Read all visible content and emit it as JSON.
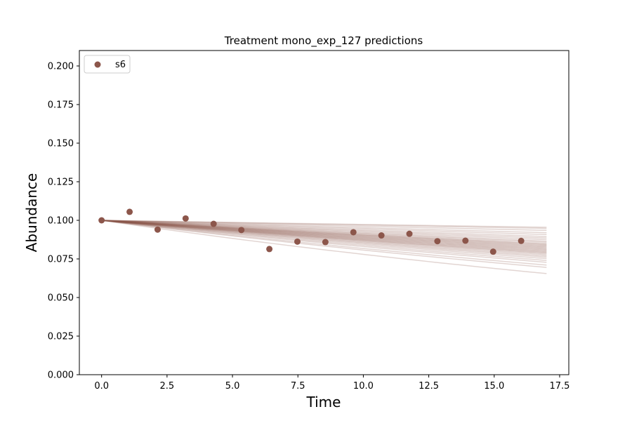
{
  "chart_data": {
    "type": "scatter",
    "title": "Treatment mono_exp_127 predictions",
    "xlabel": "Time",
    "ylabel": "Abundance",
    "xlim": [
      -0.85,
      17.85
    ],
    "ylim": [
      0,
      0.21
    ],
    "xticks": [
      "0.0",
      "2.5",
      "5.0",
      "7.5",
      "10.0",
      "12.5",
      "15.0",
      "17.5"
    ],
    "yticks": [
      "0.000",
      "0.025",
      "0.050",
      "0.075",
      "0.100",
      "0.125",
      "0.150",
      "0.175",
      "0.200"
    ],
    "grid": false,
    "legend_position": "upper-left",
    "series": [
      {
        "name": "s6",
        "color": "#8c564b",
        "x": [
          0.0,
          1.07,
          2.14,
          3.21,
          4.28,
          5.34,
          6.41,
          7.48,
          8.55,
          9.62,
          10.69,
          11.76,
          12.83,
          13.9,
          14.96,
          16.03
        ],
        "y": [
          0.1,
          0.1055,
          0.094,
          0.1012,
          0.0977,
          0.0937,
          0.0814,
          0.0862,
          0.0859,
          0.0923,
          0.0902,
          0.0913,
          0.0865,
          0.0868,
          0.0797,
          0.0867
        ]
      }
    ],
    "prediction_curves": {
      "color": "#8c564b",
      "model": "exponential decay",
      "y0": 0.1,
      "x_end": 17,
      "end_values": [
        0.0655,
        0.0695,
        0.071,
        0.0728,
        0.074,
        0.0752,
        0.0762,
        0.077,
        0.0778,
        0.0785,
        0.079,
        0.0795,
        0.08,
        0.0805,
        0.081,
        0.0815,
        0.082,
        0.0825,
        0.083,
        0.0835,
        0.084,
        0.0845,
        0.085,
        0.0858,
        0.0865,
        0.0875,
        0.0885,
        0.0895,
        0.0908,
        0.092,
        0.0935,
        0.0948,
        0.0955
      ]
    }
  }
}
